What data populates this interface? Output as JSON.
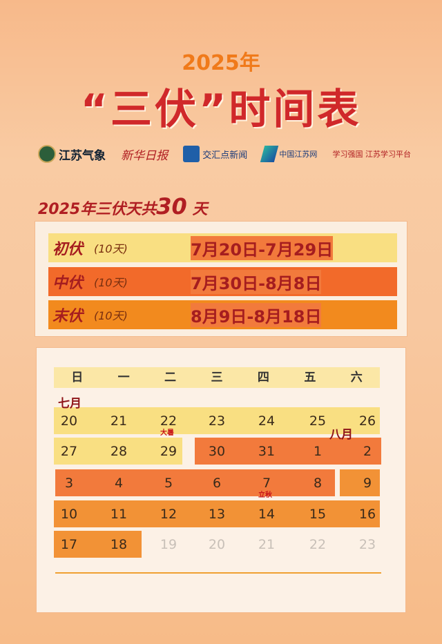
{
  "header": {
    "year": "2025年",
    "title": "“三伏”时间表"
  },
  "logos": [
    "江苏气象",
    "新华日报",
    "交汇点新闻",
    "中国江苏网",
    "学习强国 江苏学习平台"
  ],
  "subtitle": {
    "prefix": "2025年三伏天共",
    "count": "30",
    "suffix": "天"
  },
  "periods": [
    {
      "name": "初伏",
      "days": "(10天)",
      "range": "7月20日-7月29日",
      "color": "#f9df82"
    },
    {
      "name": "中伏",
      "days": "(10天)",
      "range": "7月30日-8月8日",
      "color": "#f26a2a"
    },
    {
      "name": "末伏",
      "days": "(10天)",
      "range": "8月9日-8月18日",
      "color": "#f28a1e"
    }
  ],
  "calendar": {
    "weekdays": [
      "日",
      "一",
      "二",
      "三",
      "四",
      "五",
      "六"
    ],
    "month_july": "七月",
    "month_august": "八月",
    "term_dashu": "大暑",
    "term_liqiu": "立秋",
    "rows": [
      [
        "20",
        "21",
        "22",
        "23",
        "24",
        "25",
        "26"
      ],
      [
        "27",
        "28",
        "29",
        "30",
        "31",
        "1",
        "2"
      ],
      [
        "3",
        "4",
        "5",
        "6",
        "7",
        "8",
        "9"
      ],
      [
        "10",
        "11",
        "12",
        "13",
        "14",
        "15",
        "16"
      ],
      [
        "17",
        "18",
        "19",
        "20",
        "21",
        "22",
        "23"
      ]
    ]
  }
}
